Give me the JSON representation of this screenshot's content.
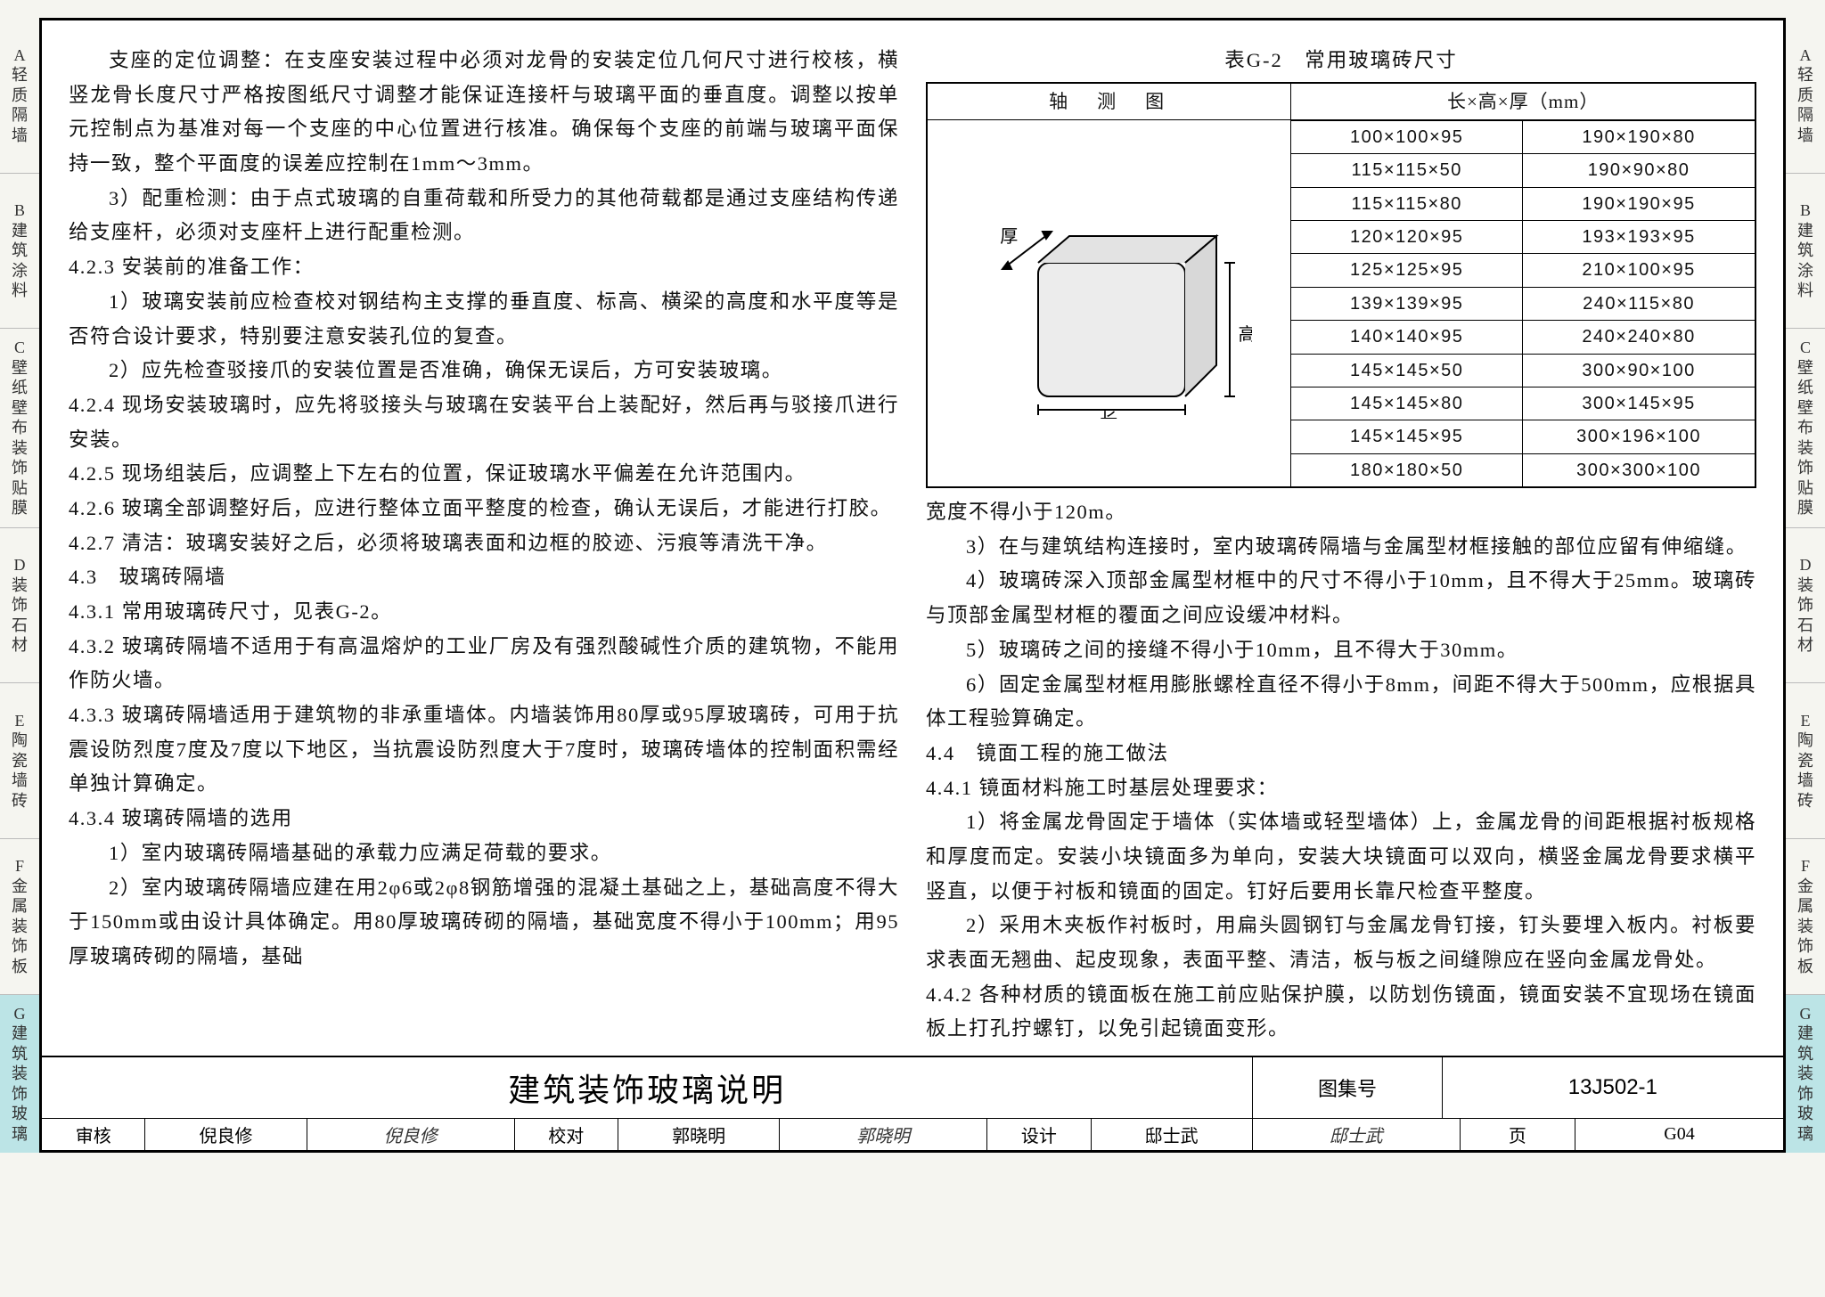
{
  "tabs": [
    {
      "id": "A",
      "label": "轻质隔墙"
    },
    {
      "id": "B",
      "label": "建筑涂料"
    },
    {
      "id": "C",
      "label": "壁纸壁布装饰贴膜"
    },
    {
      "id": "D",
      "label": "装饰石材"
    },
    {
      "id": "E",
      "label": "陶瓷墙砖"
    },
    {
      "id": "F",
      "label": "金属装饰板"
    },
    {
      "id": "G",
      "label": "建筑装饰玻璃"
    }
  ],
  "active_tab_index": 6,
  "left": {
    "p1": "支座的定位调整：在支座安装过程中必须对龙骨的安装定位几何尺寸进行校核，横竖龙骨长度尺寸严格按图纸尺寸调整才能保证连接杆与玻璃平面的垂直度。调整以按单元控制点为基准对每一个支座的中心位置进行核准。确保每个支座的前端与玻璃平面保持一致，整个平面度的误差应控制在1mm～3mm。",
    "p2": "3）配重检测：由于点式玻璃的自重荷载和所受力的其他荷载都是通过支座结构传递给支座杆，必须对支座杆上进行配重检测。",
    "p3": "4.2.3 安装前的准备工作：",
    "p4": "1）玻璃安装前应检查校对钢结构主支撑的垂直度、标高、横梁的高度和水平度等是否符合设计要求，特别要注意安装孔位的复查。",
    "p5": "2）应先检查驳接爪的安装位置是否准确，确保无误后，方可安装玻璃。",
    "p6": "4.2.4 现场安装玻璃时，应先将驳接头与玻璃在安装平台上装配好，然后再与驳接爪进行安装。",
    "p7": "4.2.5 现场组装后，应调整上下左右的位置，保证玻璃水平偏差在允许范围内。",
    "p8": "4.2.6 玻璃全部调整好后，应进行整体立面平整度的检查，确认无误后，才能进行打胶。",
    "p9": "4.2.7 清洁：玻璃安装好之后，必须将玻璃表面和边框的胶迹、污痕等清洗干净。",
    "p10": "4.3　玻璃砖隔墙",
    "p11": "4.3.1 常用玻璃砖尺寸，见表G-2。",
    "p12": "4.3.2 玻璃砖隔墙不适用于有高温熔炉的工业厂房及有强烈酸碱性介质的建筑物，不能用作防火墙。",
    "p13": "4.3.3 玻璃砖隔墙适用于建筑物的非承重墙体。内墙装饰用80厚或95厚玻璃砖，可用于抗震设防烈度7度及7度以下地区，当抗震设防烈度大于7度时，玻璃砖墙体的控制面积需经单独计算确定。",
    "p14": "4.3.4 玻璃砖隔墙的选用",
    "p15": "1）室内玻璃砖隔墙基础的承载力应满足荷载的要求。",
    "p16": "2）室内玻璃砖隔墙应建在用2φ6或2φ8钢筋增强的混凝土基础之上，基础高度不得大于150mm或由设计具体确定。用80厚玻璃砖砌的隔墙，基础宽度不得小于100mm；用95厚玻璃砖砌的隔墙，基础"
  },
  "table": {
    "caption": "表G-2　常用玻璃砖尺寸",
    "head_left": "轴　测　图",
    "head_right": "长×高×厚（mm）",
    "label_length": "长",
    "label_height": "高",
    "label_thick": "厚",
    "rows": [
      [
        "100×100×95",
        "190×190×80"
      ],
      [
        "115×115×50",
        "190×90×80"
      ],
      [
        "115×115×80",
        "190×190×95"
      ],
      [
        "120×120×95",
        "193×193×95"
      ],
      [
        "125×125×95",
        "210×100×95"
      ],
      [
        "139×139×95",
        "240×115×80"
      ],
      [
        "140×140×95",
        "240×240×80"
      ],
      [
        "145×145×50",
        "300×90×100"
      ],
      [
        "145×145×80",
        "300×145×95"
      ],
      [
        "145×145×95",
        "300×196×100"
      ],
      [
        "180×180×50",
        "300×300×100"
      ]
    ],
    "diagram": {
      "stroke": "#000000",
      "fill": "#ececec"
    }
  },
  "right": {
    "p1": "宽度不得小于120m。",
    "p2": "3）在与建筑结构连接时，室内玻璃砖隔墙与金属型材框接触的部位应留有伸缩缝。",
    "p3": "4）玻璃砖深入顶部金属型材框中的尺寸不得小于10mm，且不得大于25mm。玻璃砖与顶部金属型材框的覆面之间应设缓冲材料。",
    "p4": "5）玻璃砖之间的接缝不得小于10mm，且不得大于30mm。",
    "p5": "6）固定金属型材框用膨胀螺栓直径不得小于8mm，间距不得大于500mm，应根据具体工程验算确定。",
    "p6": "4.4　镜面工程的施工做法",
    "p7": "4.4.1 镜面材料施工时基层处理要求：",
    "p8": "1）将金属龙骨固定于墙体（实体墙或轻型墙体）上，金属龙骨的间距根据衬板规格和厚度而定。安装小块镜面多为单向，安装大块镜面可以双向，横竖金属龙骨要求横平竖直，以便于衬板和镜面的固定。钉好后要用长靠尺检查平整度。",
    "p9": "2）采用木夹板作衬板时，用扁头圆钢钉与金属龙骨钉接，钉头要埋入板内。衬板要求表面无翘曲、起皮现象，表面平整、清洁，板与板之间缝隙应在竖向金属龙骨处。",
    "p10": "4.4.2 各种材质的镜面板在施工前应贴保护膜，以防划伤镜面，镜面安装不宜现场在镜面板上打孔拧螺钉，以免引起镜面变形。"
  },
  "titleblock": {
    "title": "建筑装饰玻璃说明",
    "atlas_label": "图集号",
    "atlas_code": "13J502-1",
    "page_label": "页",
    "page_code": "G04",
    "sig": [
      {
        "role": "审核",
        "name": "倪良修",
        "sign": "倪良修"
      },
      {
        "role": "校对",
        "name": "郭晓明",
        "sign": "郭晓明"
      },
      {
        "role": "设计",
        "name": "邸士武",
        "sign": "邸士武"
      }
    ]
  }
}
